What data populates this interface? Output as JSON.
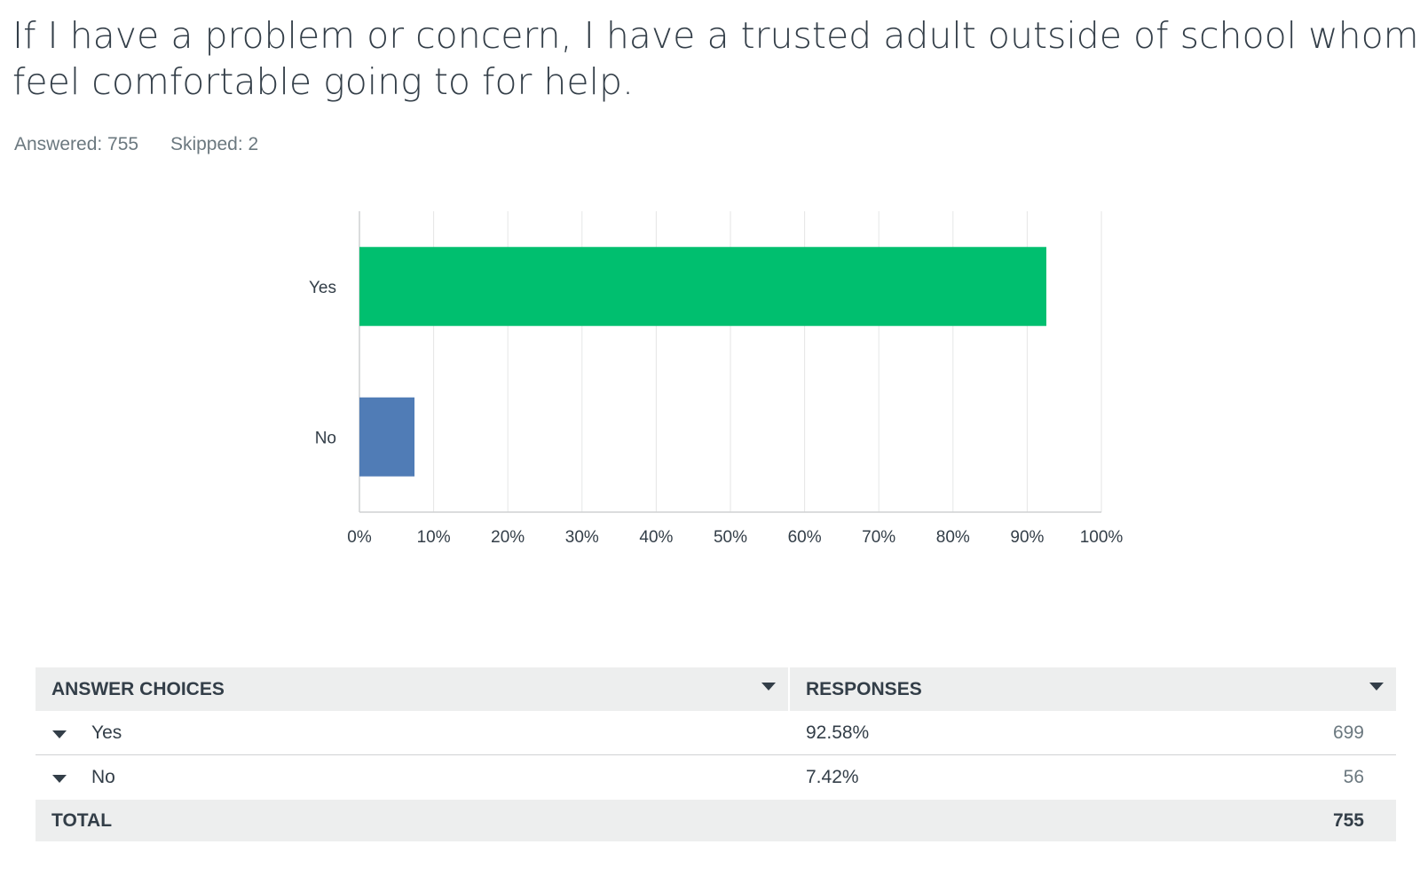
{
  "question": {
    "title_line1": "If I have a problem or concern, I have a trusted adult outside of school whom I",
    "title_line2": "feel comfortable going to for help."
  },
  "stats": {
    "answered": "Answered: 755",
    "skipped": "Skipped: 2"
  },
  "chart_data": {
    "type": "bar",
    "orientation": "horizontal",
    "categories": [
      "Yes",
      "No"
    ],
    "values": [
      92.58,
      7.42
    ],
    "colors": [
      "#00bf6f",
      "#507cb6"
    ],
    "xlim": [
      0,
      100
    ],
    "x_ticks": [
      "0%",
      "10%",
      "20%",
      "30%",
      "40%",
      "50%",
      "60%",
      "70%",
      "80%",
      "90%",
      "100%"
    ],
    "grid": true,
    "title": "",
    "xlabel": "",
    "ylabel": ""
  },
  "table": {
    "headers": [
      "ANSWER CHOICES",
      "RESPONSES"
    ],
    "rows": [
      {
        "choice": "Yes",
        "percent": "92.58%",
        "count": "699"
      },
      {
        "choice": "No",
        "percent": "7.42%",
        "count": "56"
      }
    ],
    "total_label": "TOTAL",
    "total_count": "755"
  },
  "colors": {
    "text": "#333e48",
    "muted": "#6b787f",
    "header_bg": "#edeeee",
    "grid": "#e5e6e6"
  }
}
